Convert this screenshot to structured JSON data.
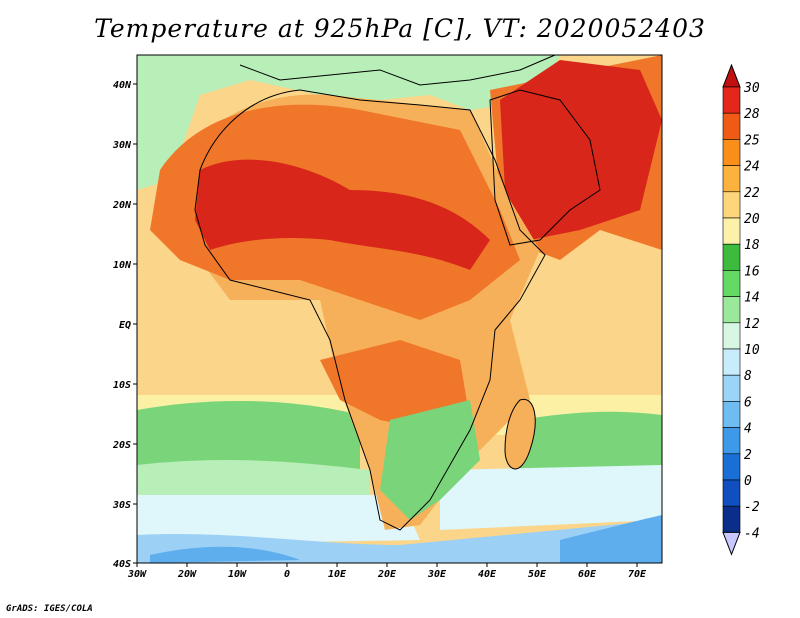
{
  "title": "Temperature at 925hPa [C], VT: 2020052403",
  "credit": "GrADS: IGES/COLA",
  "lat_labels": [
    "40N",
    "30N",
    "20N",
    "10N",
    "EQ",
    "10S",
    "20S",
    "30S",
    "40S"
  ],
  "lon_labels": [
    "30W",
    "20W",
    "10W",
    "0",
    "10E",
    "20E",
    "30E",
    "40E",
    "50E",
    "60E",
    "70E"
  ],
  "colorbar": {
    "labels": [
      "30",
      "28",
      "25",
      "24",
      "22",
      "20",
      "18",
      "16",
      "14",
      "12",
      "10",
      "8",
      "6",
      "4",
      "2",
      "0",
      "-2",
      "-4"
    ],
    "colors": [
      "#e5261c",
      "#f05a14",
      "#f98e1a",
      "#fbb33e",
      "#fdd57a",
      "#fdf0a8",
      "#3cbb3c",
      "#64d964",
      "#9ae89a",
      "#d7f7e4",
      "#c7ecfa",
      "#9ad5f7",
      "#6fbcf2",
      "#3e99e8",
      "#1a6fd6",
      "#0f4fbf",
      "#0a2f8a"
    ],
    "top_arrow_color": "#c01010",
    "bottom_arrow_color": "#c8c8ff"
  },
  "map_colors": {
    "land_hot": "#d8261a",
    "land_warm": "#f0762a",
    "land_mild": "#f7b05a",
    "ocean_tropic": "#fbd58a",
    "ocean_mid": "#fcf0a5",
    "ocean_green": "#7ad57a",
    "ocean_light": "#b8eeb8",
    "ocean_cool": "#dff6fb",
    "ocean_cold": "#9cd0f5",
    "ocean_colder": "#5eaeee"
  }
}
